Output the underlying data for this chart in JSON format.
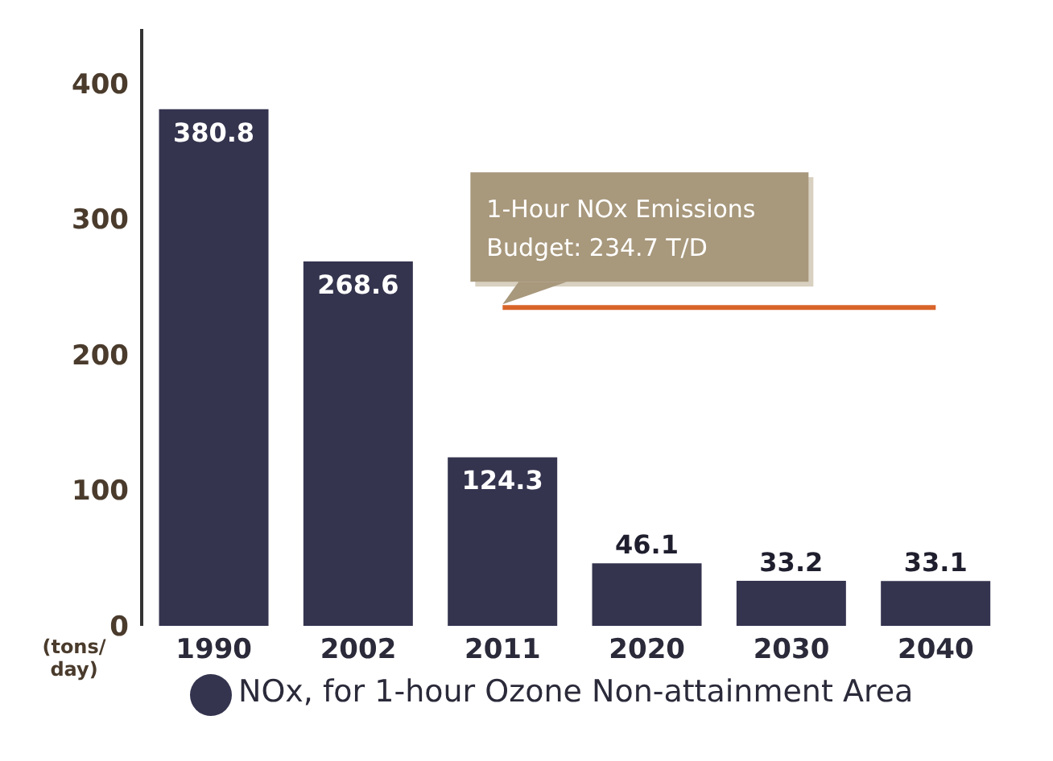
{
  "chart_data": {
    "type": "bar",
    "ylabel": "(tons/ day)",
    "categories": [
      "1990",
      "2002",
      "2011",
      "2020",
      "2030",
      "2040"
    ],
    "series": [
      {
        "name": "NOx, for 1-hour Ozone Non-attainment Area",
        "color": "#34344f",
        "values": [
          380.8,
          268.6,
          124.3,
          46.1,
          33.2,
          33.1
        ]
      }
    ],
    "ylim": [
      0,
      440
    ],
    "yticks": [
      0,
      100,
      200,
      300,
      400
    ],
    "grid": false,
    "legend": "bottom",
    "data_labels": true,
    "ref_lines": [
      {
        "axis": "y",
        "value": 234.7,
        "label": "1-Hour NOx Emissions Budget: 234.7 T/D",
        "color": "#d9642a"
      }
    ]
  }
}
